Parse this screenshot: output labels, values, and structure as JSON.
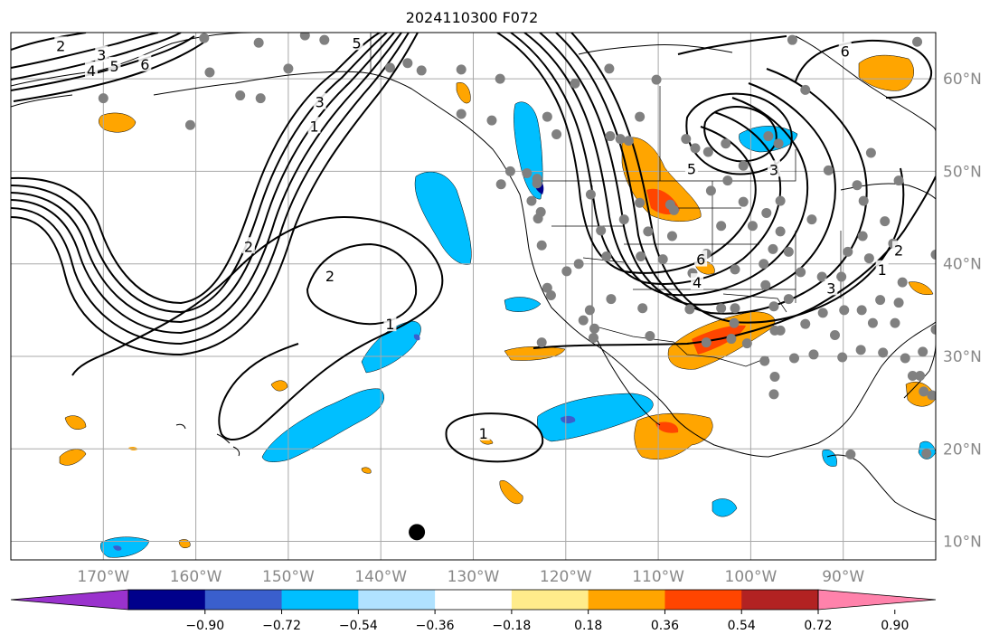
{
  "title": "2024110300 F072",
  "map": {
    "lon_range": [
      -180,
      -80
    ],
    "lat_range": [
      8,
      65
    ],
    "lat_labels": [
      {
        "lat": 60,
        "text": "60°N"
      },
      {
        "lat": 50,
        "text": "50°N"
      },
      {
        "lat": 40,
        "text": "40°N"
      },
      {
        "lat": 30,
        "text": "30°N"
      },
      {
        "lat": 20,
        "text": "20°N"
      },
      {
        "lat": 10,
        "text": "10°N"
      }
    ],
    "lon_labels": [
      {
        "lon": -170,
        "text": "170°W"
      },
      {
        "lon": -160,
        "text": "160°W"
      },
      {
        "lon": -150,
        "text": "150°W"
      },
      {
        "lon": -140,
        "text": "140°W"
      },
      {
        "lon": -130,
        "text": "130°W"
      },
      {
        "lon": -120,
        "text": "120°W"
      },
      {
        "lon": -110,
        "text": "110°W"
      },
      {
        "lon": -100,
        "text": "100°W"
      },
      {
        "lon": -90,
        "text": "90°W"
      }
    ],
    "contour_labels": [
      {
        "text": "2",
        "lon": -174.6,
        "lat": 63.6
      },
      {
        "text": "3",
        "lon": -170.2,
        "lat": 62.6
      },
      {
        "text": "4",
        "lon": -171.3,
        "lat": 60.9
      },
      {
        "text": "5",
        "lon": -168.8,
        "lat": 61.4
      },
      {
        "text": "6",
        "lon": -165.5,
        "lat": 61.6
      },
      {
        "text": "5",
        "lon": -142.6,
        "lat": 63.9
      },
      {
        "text": "3",
        "lon": -146.6,
        "lat": 57.5
      },
      {
        "text": "1",
        "lon": -147.2,
        "lat": 54.9
      },
      {
        "text": "2",
        "lon": -154.3,
        "lat": 41.9
      },
      {
        "text": "2",
        "lon": -145.5,
        "lat": 38.7
      },
      {
        "text": "1",
        "lon": -139.0,
        "lat": 33.5
      },
      {
        "text": "1",
        "lon": -128.9,
        "lat": 21.7
      },
      {
        "text": "6",
        "lon": -89.8,
        "lat": 63.0
      },
      {
        "text": "5",
        "lon": -106.4,
        "lat": 50.3
      },
      {
        "text": "3",
        "lon": -97.5,
        "lat": 50.2
      },
      {
        "text": "6",
        "lon": -105.4,
        "lat": 40.5
      },
      {
        "text": "4",
        "lon": -105.8,
        "lat": 38.0
      },
      {
        "text": "3",
        "lon": -91.3,
        "lat": 37.4
      },
      {
        "text": "2",
        "lon": -84.0,
        "lat": 41.5
      },
      {
        "text": "1",
        "lon": -85.8,
        "lat": 39.4
      }
    ],
    "black_marker": {
      "lon": -136.1,
      "lat": 11.0
    },
    "station_points": [
      [
        -159.1,
        64.4
      ],
      [
        -153.2,
        63.9
      ],
      [
        -158.5,
        60.7
      ],
      [
        -148.2,
        64.7
      ],
      [
        -146.1,
        64.2
      ],
      [
        -153.0,
        57.9
      ],
      [
        -150.0,
        61.1
      ],
      [
        -170.0,
        57.9
      ],
      [
        -160.6,
        55.0
      ],
      [
        -155.2,
        58.2
      ],
      [
        -135.6,
        60.9
      ],
      [
        -139.0,
        61.2
      ],
      [
        -131.3,
        61.0
      ],
      [
        -128.0,
        55.5
      ],
      [
        -121.0,
        54.0
      ],
      [
        -122.0,
        55.9
      ],
      [
        -119.0,
        59.5
      ],
      [
        -115.3,
        61.1
      ],
      [
        -110.2,
        59.9
      ],
      [
        -112.0,
        55.9
      ],
      [
        -113.2,
        53.3
      ],
      [
        -114.1,
        53.5
      ],
      [
        -106.0,
        52.5
      ],
      [
        -104.6,
        52.1
      ],
      [
        -102.7,
        53.0
      ],
      [
        -97.0,
        53.0
      ],
      [
        -98.1,
        53.8
      ],
      [
        -94.1,
        58.8
      ],
      [
        -91.6,
        50.1
      ],
      [
        -87.0,
        52.0
      ],
      [
        -88.5,
        48.5
      ],
      [
        -87.8,
        46.8
      ],
      [
        -84.0,
        49.0
      ],
      [
        -85.5,
        44.6
      ],
      [
        -84.6,
        42.2
      ],
      [
        -80.0,
        41.0
      ],
      [
        -83.6,
        38.0
      ],
      [
        -87.2,
        40.6
      ],
      [
        -89.5,
        41.3
      ],
      [
        -87.9,
        43.0
      ],
      [
        -93.4,
        44.8
      ],
      [
        -96.8,
        46.8
      ],
      [
        -98.3,
        45.5
      ],
      [
        -100.8,
        46.7
      ],
      [
        -102.5,
        49.0
      ],
      [
        -100.8,
        50.6
      ],
      [
        -104.3,
        47.9
      ],
      [
        -108.3,
        45.8
      ],
      [
        -104.8,
        41.1
      ],
      [
        -108.5,
        43.0
      ],
      [
        -111.1,
        43.5
      ],
      [
        -113.7,
        44.8
      ],
      [
        -116.2,
        43.6
      ],
      [
        -117.3,
        47.5
      ],
      [
        -112.0,
        46.6
      ],
      [
        -108.7,
        46.4
      ],
      [
        -103.2,
        44.1
      ],
      [
        -99.8,
        44.1
      ],
      [
        -96.8,
        43.5
      ],
      [
        -97.6,
        41.6
      ],
      [
        -95.9,
        41.3
      ],
      [
        -98.6,
        40.0
      ],
      [
        -101.7,
        39.4
      ],
      [
        -106.3,
        39.0
      ],
      [
        -109.5,
        40.5
      ],
      [
        -111.9,
        40.8
      ],
      [
        -115.6,
        40.8
      ],
      [
        -118.6,
        40.0
      ],
      [
        -119.9,
        39.2
      ],
      [
        -122.6,
        42.0
      ],
      [
        -122.7,
        45.6
      ],
      [
        -123.0,
        44.9
      ],
      [
        -123.7,
        46.8
      ],
      [
        -123.1,
        49.2
      ],
      [
        -123.1,
        48.7
      ],
      [
        -124.2,
        49.8
      ],
      [
        -126.0,
        50.0
      ],
      [
        -122.0,
        37.4
      ],
      [
        -117.4,
        35.0
      ],
      [
        -115.1,
        36.2
      ],
      [
        -111.7,
        35.2
      ],
      [
        -110.9,
        32.2
      ],
      [
        -106.6,
        35.1
      ],
      [
        -103.2,
        35.2
      ],
      [
        -101.7,
        35.2
      ],
      [
        -97.5,
        35.4
      ],
      [
        -95.9,
        36.2
      ],
      [
        -98.4,
        37.7
      ],
      [
        -94.6,
        39.1
      ],
      [
        -92.3,
        38.6
      ],
      [
        -90.2,
        38.6
      ],
      [
        -89.9,
        35.0
      ],
      [
        -92.2,
        34.7
      ],
      [
        -94.1,
        33.5
      ],
      [
        -96.8,
        32.8
      ],
      [
        -97.4,
        32.8
      ],
      [
        -101.8,
        33.6
      ],
      [
        -102.1,
        31.9
      ],
      [
        -104.8,
        31.5
      ],
      [
        -100.4,
        31.4
      ],
      [
        -98.5,
        29.5
      ],
      [
        -95.3,
        29.8
      ],
      [
        -97.4,
        27.8
      ],
      [
        -97.5,
        25.9
      ],
      [
        -93.2,
        30.2
      ],
      [
        -90.1,
        29.9
      ],
      [
        -88.1,
        30.7
      ],
      [
        -86.8,
        33.6
      ],
      [
        -84.4,
        33.6
      ],
      [
        -81.4,
        30.5
      ],
      [
        -81.7,
        27.9
      ],
      [
        -80.4,
        25.8
      ],
      [
        -82.5,
        27.9
      ],
      [
        -85.7,
        30.4
      ],
      [
        -90.9,
        32.3
      ],
      [
        -86.0,
        36.1
      ],
      [
        -88.0,
        35.0
      ],
      [
        -84.0,
        35.8
      ],
      [
        -83.3,
        29.8
      ],
      [
        -80.0,
        32.9
      ],
      [
        -81.3,
        26.2
      ],
      [
        -118.1,
        33.9
      ],
      [
        -116.9,
        33.0
      ],
      [
        -121.6,
        36.6
      ],
      [
        -127.0,
        48.6
      ],
      [
        -122.6,
        31.5
      ],
      [
        -117.0,
        32.0
      ],
      [
        -81.0,
        19.5
      ],
      [
        -89.2,
        19.4
      ],
      [
        -95.5,
        64.2
      ],
      [
        -82.0,
        64.0
      ],
      [
        -137.1,
        61.7
      ],
      [
        -131.3,
        56.2
      ],
      [
        -127.1,
        60.0
      ],
      [
        -115.2,
        53.8
      ],
      [
        -107.0,
        53.5
      ]
    ]
  },
  "colorbar": {
    "ticks": [
      "−0.90",
      "−0.72",
      "−0.54",
      "−0.36",
      "−0.18",
      "0.18",
      "0.36",
      "0.54",
      "0.72",
      "0.90"
    ],
    "colors": [
      "#9a32cd",
      "#00008b",
      "#3a5fcd",
      "#00bfff",
      "#b0e2ff",
      "#ffffff",
      "#ffec8b",
      "#ffa500",
      "#ff4500",
      "#b22222",
      "#ff82ab"
    ]
  }
}
